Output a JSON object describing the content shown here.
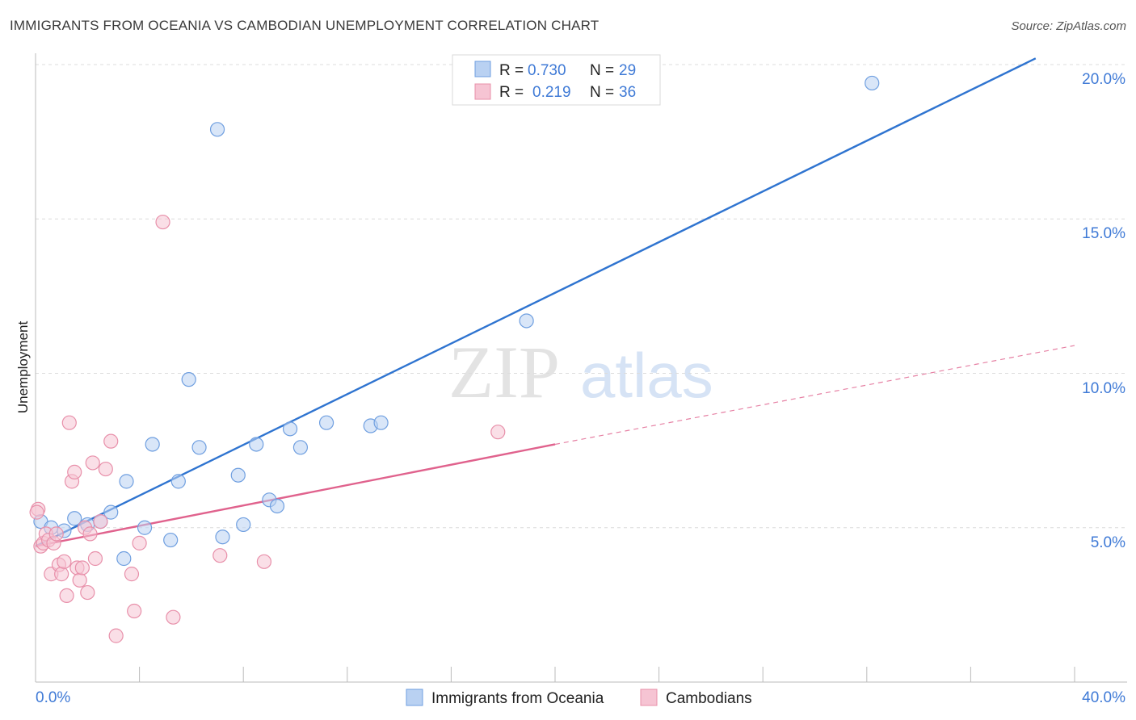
{
  "header": {
    "title": "IMMIGRANTS FROM OCEANIA VS CAMBODIAN UNEMPLOYMENT CORRELATION CHART",
    "source": "Source: ZipAtlas.com"
  },
  "watermark": {
    "zip": "ZIP",
    "atlas": "atlas"
  },
  "chart_data": {
    "type": "scatter",
    "title": "IMMIGRANTS FROM OCEANIA VS CAMBODIAN UNEMPLOYMENT CORRELATION CHART",
    "xlabel": "",
    "ylabel": "Unemployment",
    "xlim": [
      0,
      40
    ],
    "ylim": [
      0,
      20.5
    ],
    "x_tick_labels": [
      "0.0%",
      "40.0%"
    ],
    "y_ticks": [
      5,
      10,
      15,
      20
    ],
    "y_tick_labels": [
      "5.0%",
      "10.0%",
      "15.0%",
      "20.0%"
    ],
    "grid": true,
    "legend": {
      "rows": [
        {
          "r_label": "R =",
          "r_value": "0.730",
          "n_label": "N =",
          "n_value": "29"
        },
        {
          "r_label": "R =",
          "r_value": "0.219",
          "n_label": "N =",
          "n_value": "36"
        }
      ],
      "bottom": [
        "Immigrants from Oceania",
        "Cambodians"
      ]
    },
    "series": [
      {
        "name": "Immigrants from Oceania",
        "color": "#6f9fe0",
        "fill": "#b9d1f2",
        "line_color": "#2f74d0",
        "points": [
          [
            0.2,
            5.2
          ],
          [
            0.6,
            5.0
          ],
          [
            1.1,
            4.9
          ],
          [
            1.5,
            5.3
          ],
          [
            2.0,
            5.1
          ],
          [
            2.5,
            5.2
          ],
          [
            2.9,
            5.5
          ],
          [
            3.4,
            4.0
          ],
          [
            3.5,
            6.5
          ],
          [
            4.2,
            5.0
          ],
          [
            4.5,
            7.7
          ],
          [
            5.2,
            4.6
          ],
          [
            5.5,
            6.5
          ],
          [
            5.9,
            9.8
          ],
          [
            6.3,
            7.6
          ],
          [
            7.0,
            17.9
          ],
          [
            7.2,
            4.7
          ],
          [
            7.8,
            6.7
          ],
          [
            8.0,
            5.1
          ],
          [
            8.5,
            7.7
          ],
          [
            9.0,
            5.9
          ],
          [
            9.3,
            5.7
          ],
          [
            9.8,
            8.2
          ],
          [
            10.2,
            7.6
          ],
          [
            11.2,
            8.4
          ],
          [
            12.9,
            8.3
          ],
          [
            13.3,
            8.4
          ],
          [
            18.9,
            11.7
          ],
          [
            32.2,
            19.4
          ]
        ],
        "trend": {
          "x": [
            0,
            38.5
          ],
          "y": [
            4.4,
            20.2
          ]
        }
      },
      {
        "name": "Cambodians",
        "color": "#e890aa",
        "fill": "#f6c4d3",
        "line_color": "#e0628d",
        "points": [
          [
            0.1,
            5.6
          ],
          [
            0.2,
            4.4
          ],
          [
            0.3,
            4.5
          ],
          [
            0.4,
            4.8
          ],
          [
            0.5,
            4.6
          ],
          [
            0.6,
            3.5
          ],
          [
            0.7,
            4.5
          ],
          [
            0.8,
            4.8
          ],
          [
            0.9,
            3.8
          ],
          [
            1.0,
            3.5
          ],
          [
            1.1,
            3.9
          ],
          [
            1.2,
            2.8
          ],
          [
            1.3,
            8.4
          ],
          [
            1.4,
            6.5
          ],
          [
            1.5,
            6.8
          ],
          [
            1.6,
            3.7
          ],
          [
            1.7,
            3.3
          ],
          [
            1.8,
            3.7
          ],
          [
            1.9,
            5.0
          ],
          [
            2.0,
            2.9
          ],
          [
            2.1,
            4.8
          ],
          [
            2.2,
            7.1
          ],
          [
            2.3,
            4.0
          ],
          [
            2.5,
            5.2
          ],
          [
            2.7,
            6.9
          ],
          [
            2.9,
            7.8
          ],
          [
            3.1,
            1.5
          ],
          [
            3.7,
            3.5
          ],
          [
            3.8,
            2.3
          ],
          [
            4.0,
            4.5
          ],
          [
            4.9,
            14.9
          ],
          [
            5.3,
            2.1
          ],
          [
            7.1,
            4.1
          ],
          [
            8.8,
            3.9
          ],
          [
            17.8,
            8.1
          ],
          [
            0.05,
            5.5
          ]
        ],
        "trend": {
          "x": [
            0,
            20
          ],
          "y": [
            4.4,
            7.7
          ]
        },
        "trend_dashed": {
          "x": [
            20,
            40
          ],
          "y": [
            7.7,
            10.9
          ]
        }
      }
    ]
  }
}
